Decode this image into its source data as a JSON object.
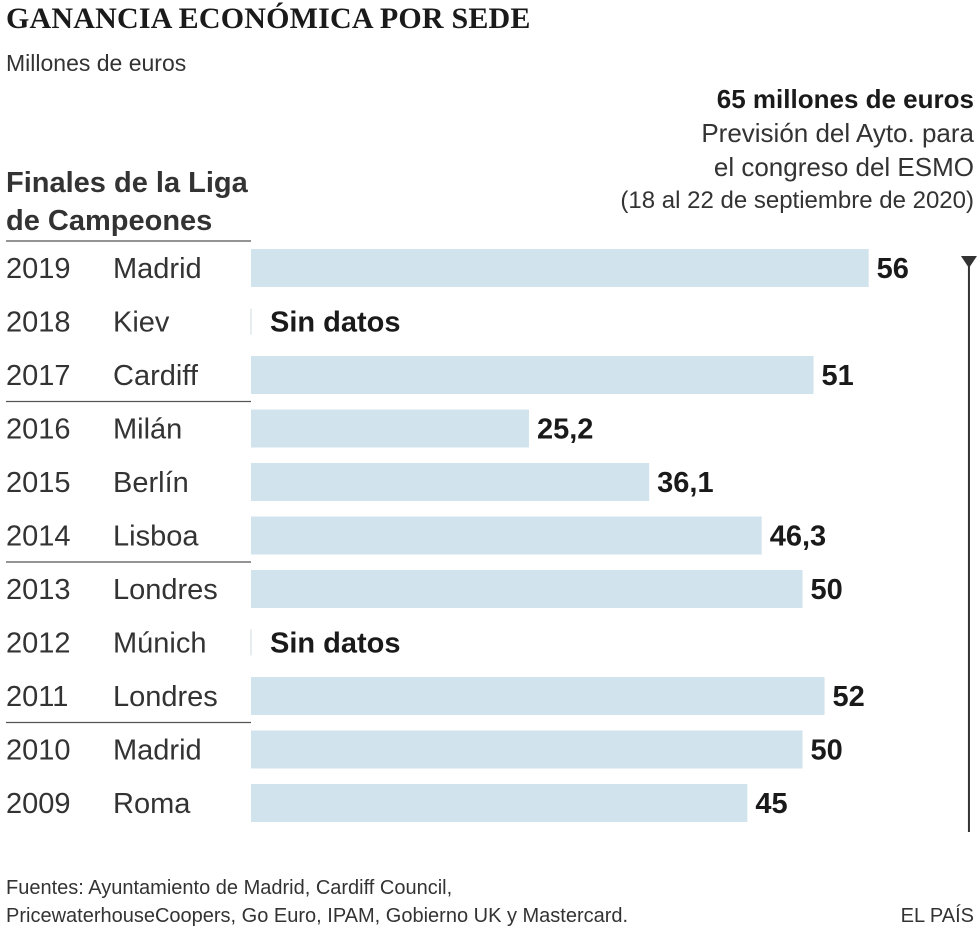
{
  "header": {
    "title": "GANANCIA ECONÓMICA POR SEDE",
    "subtitle": "Millones de euros"
  },
  "reference": {
    "value_label": "65 millones de euros",
    "line1": "Previsión del Ayto. para",
    "line2": "el congreso del ESMO",
    "line3": "(18 al 22 de septiembre de 2020)",
    "value": 65
  },
  "left_header": {
    "line1": "Finales de la Liga",
    "line2": "de Campeones"
  },
  "no_data_label": "Sin datos",
  "chart_data": {
    "type": "bar",
    "orientation": "horizontal",
    "title": "GANANCIA ECONÓMICA POR SEDE",
    "subtitle": "Millones de euros",
    "xlim": [
      0,
      65
    ],
    "rows": [
      {
        "year": "2019",
        "city": "Madrid",
        "value": 56,
        "label": "56"
      },
      {
        "year": "2018",
        "city": "Kiev",
        "value": null,
        "label": "Sin datos"
      },
      {
        "year": "2017",
        "city": "Cardiff",
        "value": 51,
        "label": "51"
      },
      {
        "year": "2016",
        "city": "Milán",
        "value": 25.2,
        "label": "25,2"
      },
      {
        "year": "2015",
        "city": "Berlín",
        "value": 36.1,
        "label": "36,1"
      },
      {
        "year": "2014",
        "city": "Lisboa",
        "value": 46.3,
        "label": "46,3"
      },
      {
        "year": "2013",
        "city": "Londres",
        "value": 50,
        "label": "50"
      },
      {
        "year": "2012",
        "city": "Múnich",
        "value": null,
        "label": "Sin datos"
      },
      {
        "year": "2011",
        "city": "Londres",
        "value": 52,
        "label": "52"
      },
      {
        "year": "2010",
        "city": "Madrid",
        "value": 50,
        "label": "50"
      },
      {
        "year": "2009",
        "city": "Roma",
        "value": 45,
        "label": "45"
      }
    ],
    "reference_line": {
      "value": 65,
      "label": "65 millones de euros"
    },
    "colors": {
      "bar": "#d1e3ec",
      "text": "#1a1a1a",
      "separator": "#555555",
      "reference": "#333333"
    }
  },
  "footer": {
    "source_line1": "Fuentes: Ayuntamiento de Madrid, Cardiff Council,",
    "source_line2": "PricewaterhouseCoopers, Go Euro, IPAM, Gobierno UK y Mastercard.",
    "brand": "EL PAÍS"
  }
}
